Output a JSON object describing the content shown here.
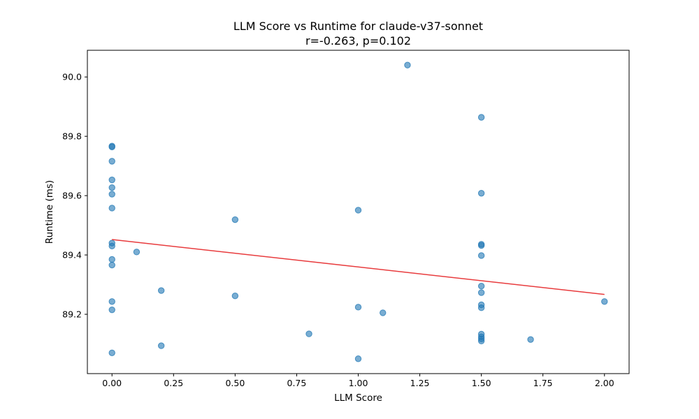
{
  "chart_data": {
    "type": "scatter",
    "title": "LLM Score vs Runtime for claude-v37-sonnet",
    "subtitle": "r=-0.263, p=0.102",
    "xlabel": "LLM Score",
    "ylabel": "Runtime (ms)",
    "xlim": [
      -0.1,
      2.1
    ],
    "ylim": [
      89.0,
      90.09
    ],
    "xticks": [
      0.0,
      0.25,
      0.5,
      0.75,
      1.0,
      1.25,
      1.5,
      1.75,
      2.0
    ],
    "xtick_labels": [
      "0.00",
      "0.25",
      "0.50",
      "0.75",
      "1.00",
      "1.25",
      "1.50",
      "1.75",
      "2.00"
    ],
    "yticks": [
      89.2,
      89.4,
      89.6,
      89.8,
      90.0
    ],
    "ytick_labels": [
      "89.2",
      "89.4",
      "89.6",
      "89.8",
      "90.0"
    ],
    "grid": false,
    "point_color": "#1f77b4",
    "trend_color": "#e41a1c",
    "trendline": {
      "x": [
        0.0,
        2.0
      ],
      "y": [
        89.452,
        89.267
      ]
    },
    "points": [
      {
        "x": 0.0,
        "y": 89.767
      },
      {
        "x": 0.0,
        "y": 89.764
      },
      {
        "x": 0.0,
        "y": 89.716
      },
      {
        "x": 0.0,
        "y": 89.653
      },
      {
        "x": 0.0,
        "y": 89.627
      },
      {
        "x": 0.0,
        "y": 89.605
      },
      {
        "x": 0.0,
        "y": 89.558
      },
      {
        "x": 0.0,
        "y": 89.44
      },
      {
        "x": 0.0,
        "y": 89.43
      },
      {
        "x": 0.0,
        "y": 89.385
      },
      {
        "x": 0.0,
        "y": 89.366
      },
      {
        "x": 0.0,
        "y": 89.243
      },
      {
        "x": 0.0,
        "y": 89.215
      },
      {
        "x": 0.0,
        "y": 89.07
      },
      {
        "x": 0.1,
        "y": 89.41
      },
      {
        "x": 0.2,
        "y": 89.28
      },
      {
        "x": 0.2,
        "y": 89.094
      },
      {
        "x": 0.5,
        "y": 89.519
      },
      {
        "x": 0.5,
        "y": 89.262
      },
      {
        "x": 0.8,
        "y": 89.134
      },
      {
        "x": 1.0,
        "y": 89.551
      },
      {
        "x": 1.0,
        "y": 89.224
      },
      {
        "x": 1.0,
        "y": 89.05
      },
      {
        "x": 1.1,
        "y": 89.205
      },
      {
        "x": 1.2,
        "y": 90.04
      },
      {
        "x": 1.5,
        "y": 89.864
      },
      {
        "x": 1.5,
        "y": 89.608
      },
      {
        "x": 1.5,
        "y": 89.436
      },
      {
        "x": 1.5,
        "y": 89.432
      },
      {
        "x": 1.5,
        "y": 89.398
      },
      {
        "x": 1.5,
        "y": 89.295
      },
      {
        "x": 1.5,
        "y": 89.273
      },
      {
        "x": 1.5,
        "y": 89.232
      },
      {
        "x": 1.5,
        "y": 89.222
      },
      {
        "x": 1.5,
        "y": 89.133
      },
      {
        "x": 1.5,
        "y": 89.124
      },
      {
        "x": 1.5,
        "y": 89.117
      },
      {
        "x": 1.5,
        "y": 89.11
      },
      {
        "x": 1.7,
        "y": 89.115
      },
      {
        "x": 2.0,
        "y": 89.243
      }
    ]
  }
}
